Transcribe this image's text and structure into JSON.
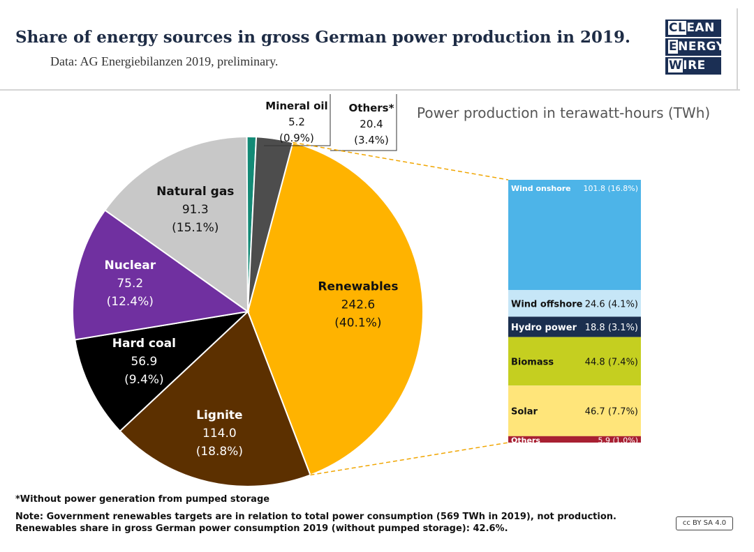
{
  "header": {
    "title": "Share of energy sources in gross German power production in 2019.",
    "subtitle": "Data: AG Energiebilanzen 2019, preliminary."
  },
  "logo": {
    "lines": [
      {
        "highlight": "CL",
        "rest": "EAN"
      },
      {
        "highlight": "E",
        "rest": "NERGY"
      },
      {
        "highlight": "W",
        "rest": "IRE"
      }
    ],
    "color": "#1b2f54"
  },
  "chart_data": [
    {
      "type": "pie",
      "title": "Power production in terawatt-hours (TWh)",
      "slices": [
        {
          "name": "Renewables",
          "value": 242.6,
          "percent": "40.1%",
          "color": "#ffb300"
        },
        {
          "name": "Lignite",
          "value": 114.0,
          "percent": "18.8%",
          "color": "#5c3000"
        },
        {
          "name": "Hard coal",
          "value": 56.9,
          "percent": "9.4%",
          "color": "#000000"
        },
        {
          "name": "Nuclear",
          "value": 75.2,
          "percent": "12.4%",
          "color": "#7030a0"
        },
        {
          "name": "Natural gas",
          "value": 91.3,
          "percent": "15.1%",
          "color": "#c8c8c8"
        },
        {
          "name": "Mineral oil",
          "value": 5.2,
          "percent": "0.9%",
          "color": "#138a76"
        },
        {
          "name": "Others*",
          "value": 20.4,
          "percent": "3.4%",
          "color": "#4d4d4d"
        }
      ]
    },
    {
      "type": "bar",
      "stacked": true,
      "parent": "Renewables",
      "segments": [
        {
          "name": "Wind onshore",
          "value": 101.8,
          "percent": "16.8%",
          "color": "#4db4e8"
        },
        {
          "name": "Wind offshore",
          "value": 24.6,
          "percent": "4.1%",
          "color": "#c6e6f7"
        },
        {
          "name": "Hydro power",
          "value": 18.8,
          "percent": "3.1%",
          "color": "#1b2f4f"
        },
        {
          "name": "Biomass",
          "value": 44.8,
          "percent": "7.4%",
          "color": "#c5cf20"
        },
        {
          "name": "Solar",
          "value": 46.7,
          "percent": "7.7%",
          "color": "#ffe57a"
        },
        {
          "name": "Others",
          "value": 5.9,
          "percent": "1.0%",
          "color": "#a82032"
        }
      ]
    }
  ],
  "footnotes": {
    "asterisk": "*Without power generation from pumped storage",
    "note1": "Note: Government renewables targets are in relation to total power consumption (569 TWh in 2019), not production.",
    "note2": "Renewables share in gross German power consumption 2019 (without pumped storage): 42.6%."
  },
  "license": "cc BY SA 4.0"
}
